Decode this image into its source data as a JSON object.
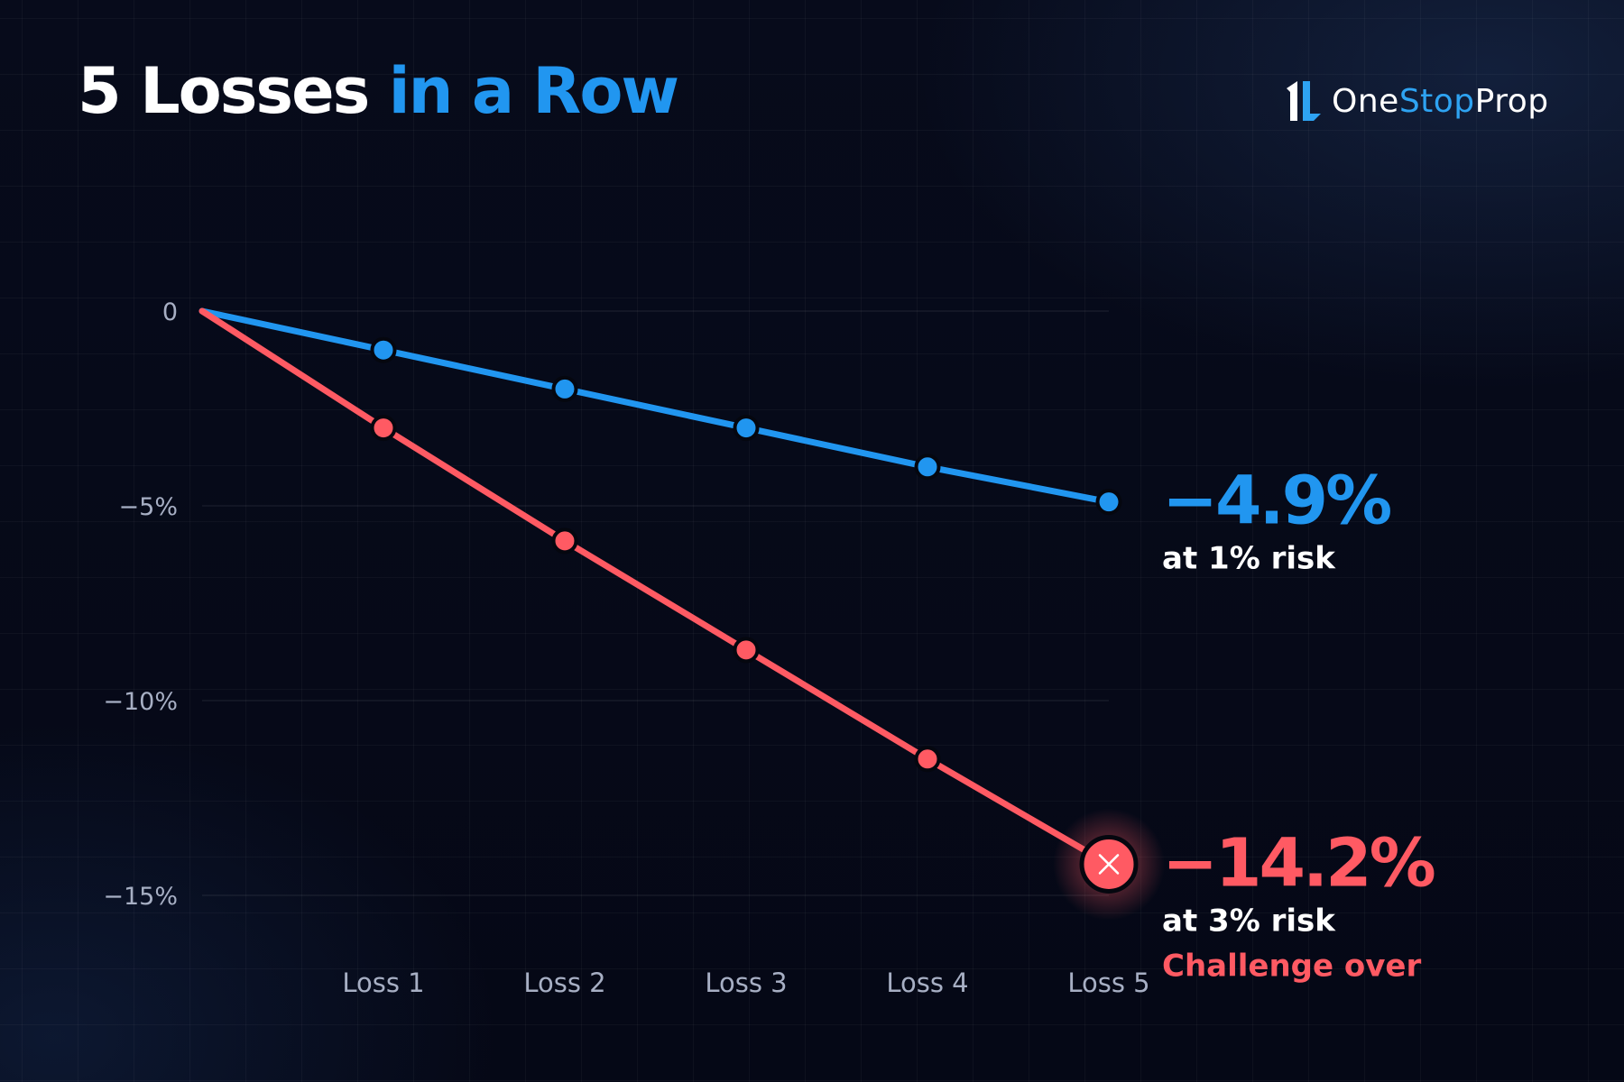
{
  "header": {
    "title_part1": "5 Losses",
    "title_part2": "in a Row"
  },
  "logo": {
    "text_part1": "One",
    "text_part2": "Stop",
    "text_part3": "Prop",
    "mark_icon": "onestopprop-logo-icon"
  },
  "colors": {
    "background": "#060a18",
    "title_white": "#ffffff",
    "accent_blue": "#2196f0",
    "accent_red": "#ff5a63",
    "tick_gray": "#a7afc4"
  },
  "chart_data": {
    "type": "line",
    "x": [
      "",
      "Loss 1",
      "Loss 2",
      "Loss 3",
      "Loss 4",
      "Loss 5"
    ],
    "ylim": [
      -17,
      0
    ],
    "yticks": [
      {
        "value": 0,
        "label": "0"
      },
      {
        "value": -5,
        "label": "−5%"
      },
      {
        "value": -10,
        "label": "−10%"
      },
      {
        "value": -15,
        "label": "−15%"
      }
    ],
    "grid": true,
    "series": [
      {
        "color": "#2196f0",
        "values": [
          0,
          -1,
          -2,
          -3,
          -4,
          -4.9
        ],
        "end_value_label": "−4.9%",
        "end_sub_label": "at 1% risk",
        "end_marker": "dot"
      },
      {
        "color": "#ff5a63",
        "values": [
          0,
          -3,
          -5.9,
          -8.7,
          -11.5,
          -14.2
        ],
        "end_value_label": "−14.2%",
        "end_sub_label": "at 3% risk",
        "end_note": "Challenge over",
        "end_marker": "x-icon"
      }
    ]
  }
}
